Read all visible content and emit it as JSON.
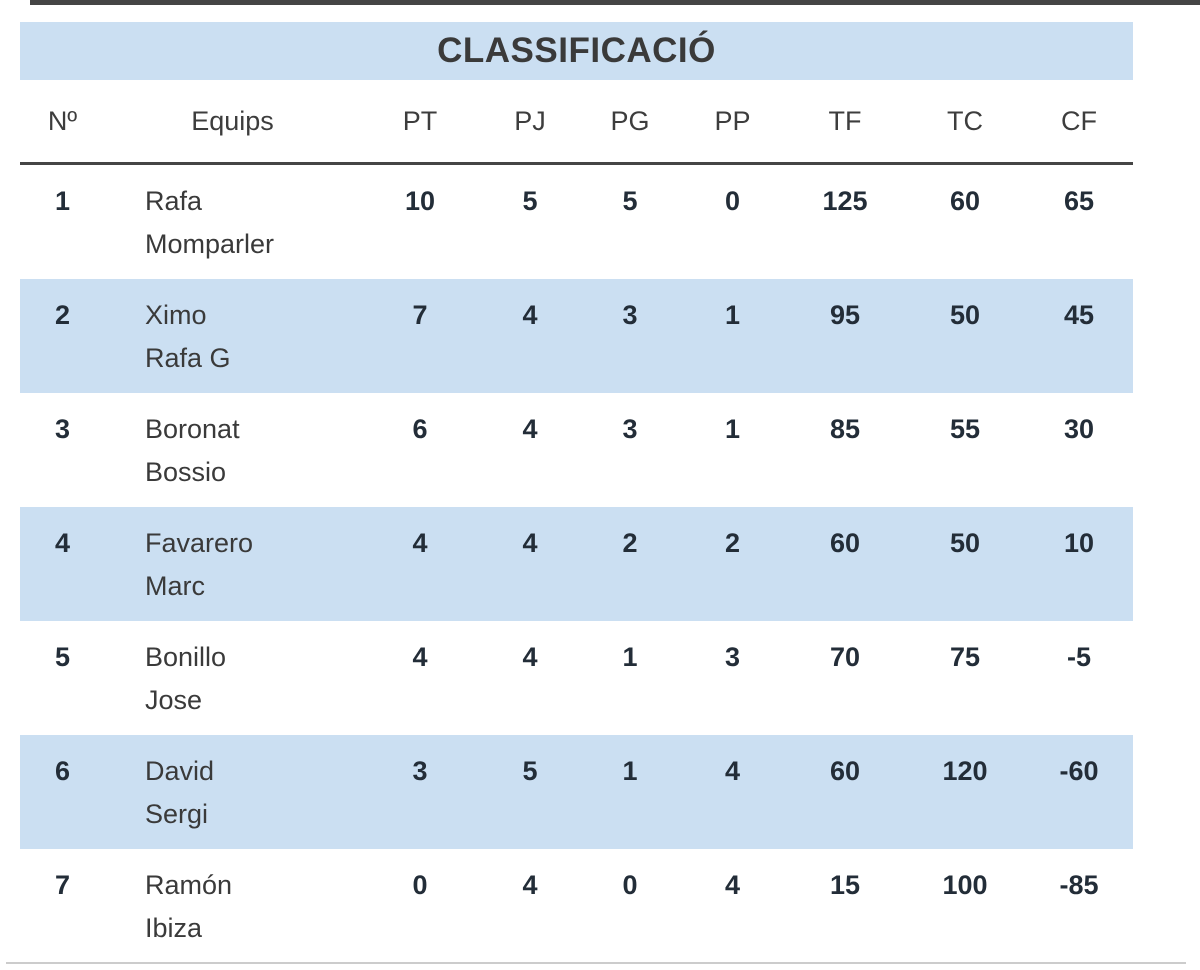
{
  "page": {
    "title": "CLASSIFICACIÓ"
  },
  "colors": {
    "title_bg": "#cbdff2",
    "row_alt_bg": "#cbdff2",
    "header_text": "#3d3d3d",
    "team_text": "#3a3a3a",
    "stat_text": "#232d38",
    "header_divider": "#454545",
    "top_divider": "#454545",
    "bottom_divider": "#cccccc"
  },
  "table": {
    "headers": [
      "Nº",
      "Equips",
      "PT",
      "PJ",
      "PG",
      "PP",
      "TF",
      "TC",
      "CF"
    ],
    "rows": [
      {
        "num": "1",
        "team_line1": "Rafa",
        "team_line2": "Momparler",
        "pt": "10",
        "pj": "5",
        "pg": "5",
        "pp": "0",
        "tf": "125",
        "tc": "60",
        "cf": "65"
      },
      {
        "num": "2",
        "team_line1": "Ximo",
        "team_line2": "Rafa G",
        "pt": "7",
        "pj": "4",
        "pg": "3",
        "pp": "1",
        "tf": "95",
        "tc": "50",
        "cf": "45"
      },
      {
        "num": "3",
        "team_line1": "Boronat",
        "team_line2": "Bossio",
        "pt": "6",
        "pj": "4",
        "pg": "3",
        "pp": "1",
        "tf": "85",
        "tc": "55",
        "cf": "30"
      },
      {
        "num": "4",
        "team_line1": "Favarero",
        "team_line2": "Marc",
        "pt": "4",
        "pj": "4",
        "pg": "2",
        "pp": "2",
        "tf": "60",
        "tc": "50",
        "cf": "10"
      },
      {
        "num": "5",
        "team_line1": "Bonillo",
        "team_line2": "Jose",
        "pt": "4",
        "pj": "4",
        "pg": "1",
        "pp": "3",
        "tf": "70",
        "tc": "75",
        "cf": "-5"
      },
      {
        "num": "6",
        "team_line1": "David",
        "team_line2": "Sergi",
        "pt": "3",
        "pj": "5",
        "pg": "1",
        "pp": "4",
        "tf": "60",
        "tc": "120",
        "cf": "-60"
      },
      {
        "num": "7",
        "team_line1": "Ramón",
        "team_line2": "Ibiza",
        "pt": "0",
        "pj": "4",
        "pg": "0",
        "pp": "4",
        "tf": "15",
        "tc": "100",
        "cf": "-85"
      }
    ]
  }
}
